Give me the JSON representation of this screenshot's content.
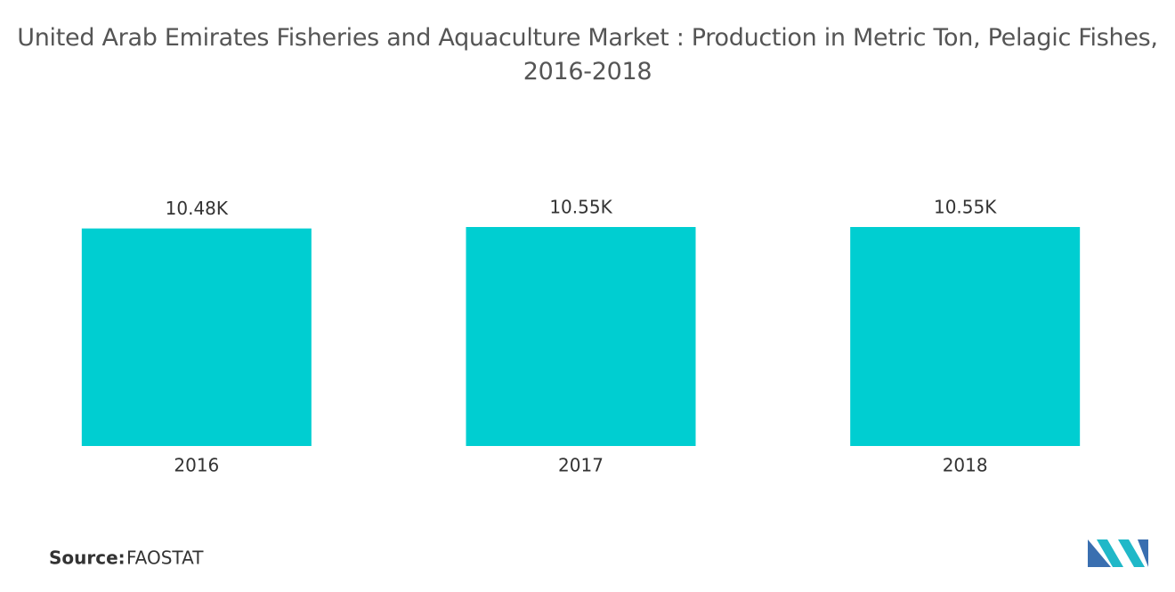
{
  "chart_data": {
    "type": "bar",
    "title": "United Arab Emirates Fisheries and Aquaculture Market : Production in Metric Ton, Pelagic Fishes, 2016-2018",
    "categories": [
      "2016",
      "2017",
      "2018"
    ],
    "values": [
      10480,
      10550,
      10550
    ],
    "value_labels": [
      "10.48K",
      "10.55K",
      "10.55K"
    ],
    "color": "#00ced1",
    "source_label": "Source:",
    "source": "FAOSTAT"
  }
}
